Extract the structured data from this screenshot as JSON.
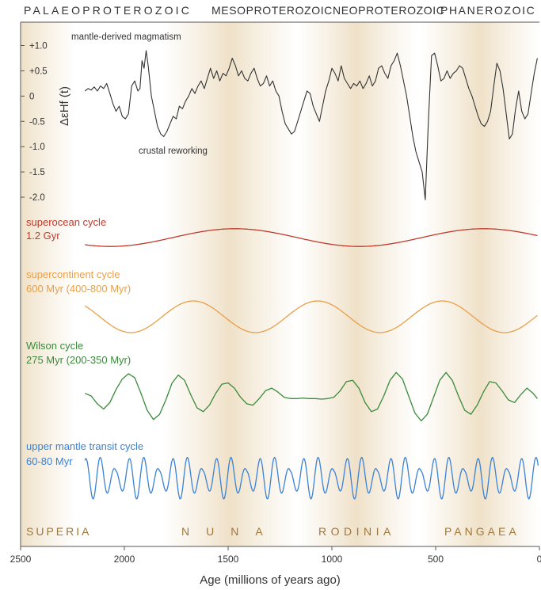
{
  "eras": [
    "PALAEOPROTEROZOIC",
    "MESOPROTEROZOIC",
    "NEOPROTEROZOIC",
    "PHANEROZOIC"
  ],
  "supercontinents": [
    "SUPERIA",
    "NUNA",
    "RODINIA",
    "PANGAEA"
  ],
  "colors": {
    "band": "#efe3cd",
    "hf": "#333333",
    "superocean": "#c0392b",
    "supercontinent": "#e8a04a",
    "wilson": "#3a8a3a",
    "transit": "#3b82d6",
    "axis": "#555555",
    "text": "#333333",
    "supercontinent_text": "#a07838"
  },
  "chart_data": {
    "type": "line",
    "xlabel": "Age (millions of years ago)",
    "xlim": [
      2500,
      0
    ],
    "x_ticks": [
      2500,
      2000,
      1500,
      1000,
      500,
      0
    ],
    "x_tick_labels": [
      "2500",
      "2000",
      "1500",
      "1000",
      "500",
      "0"
    ],
    "hf_panel": {
      "ylabel": "ΔεHf (t)",
      "ylim": [
        -2.2,
        1.2
      ],
      "y_ticks": [
        1.0,
        0.5,
        0,
        -0.5,
        -1.0,
        -1.5,
        -2.0
      ],
      "y_tick_labels": [
        "+1.0",
        "+0.5",
        "0",
        "-0.5",
        "-1.0",
        "-1.5",
        "-2.0"
      ],
      "annotations": [
        "mantle-derived magmatism",
        "crustal reworking"
      ],
      "x": [
        2190,
        2175,
        2160,
        2145,
        2130,
        2115,
        2100,
        2085,
        2070,
        2055,
        2040,
        2025,
        2010,
        1995,
        1980,
        1965,
        1950,
        1935,
        1925,
        1915,
        1905,
        1895,
        1885,
        1870,
        1855,
        1840,
        1825,
        1810,
        1795,
        1780,
        1765,
        1750,
        1735,
        1720,
        1705,
        1690,
        1675,
        1660,
        1645,
        1630,
        1615,
        1600,
        1585,
        1570,
        1555,
        1540,
        1525,
        1510,
        1495,
        1480,
        1465,
        1450,
        1435,
        1420,
        1405,
        1390,
        1375,
        1360,
        1345,
        1330,
        1315,
        1300,
        1285,
        1270,
        1255,
        1240,
        1225,
        1210,
        1195,
        1180,
        1165,
        1150,
        1135,
        1120,
        1105,
        1090,
        1075,
        1060,
        1045,
        1030,
        1015,
        1000,
        985,
        970,
        955,
        940,
        925,
        910,
        895,
        880,
        865,
        850,
        835,
        820,
        805,
        790,
        775,
        760,
        745,
        730,
        715,
        700,
        685,
        670,
        655,
        640,
        625,
        610,
        595,
        580,
        565,
        550,
        535,
        520,
        505,
        490,
        475,
        460,
        445,
        430,
        415,
        400,
        385,
        370,
        355,
        340,
        325,
        310,
        295,
        280,
        265,
        250,
        235,
        220,
        205,
        190,
        175,
        160,
        145,
        130,
        115,
        100,
        85,
        70,
        55,
        40,
        25,
        10
      ],
      "y": [
        0.1,
        0.15,
        0.12,
        0.18,
        0.1,
        0.2,
        0.15,
        0.25,
        0.05,
        -0.15,
        -0.3,
        -0.2,
        -0.4,
        -0.45,
        -0.35,
        0.2,
        0.3,
        0.1,
        0.15,
        0.7,
        0.55,
        0.9,
        0.6,
        0.0,
        -0.3,
        -0.6,
        -0.75,
        -0.8,
        -0.7,
        -0.55,
        -0.4,
        -0.45,
        -0.2,
        -0.25,
        -0.1,
        0.0,
        0.15,
        0.05,
        0.2,
        0.3,
        0.15,
        0.35,
        0.55,
        0.35,
        0.5,
        0.3,
        0.45,
        0.4,
        0.55,
        0.75,
        0.6,
        0.4,
        0.5,
        0.35,
        0.3,
        0.45,
        0.55,
        0.35,
        0.2,
        0.25,
        0.4,
        0.2,
        0.3,
        0.1,
        0.0,
        -0.3,
        -0.55,
        -0.65,
        -0.75,
        -0.7,
        -0.5,
        -0.3,
        -0.1,
        0.1,
        0.05,
        -0.2,
        -0.35,
        -0.5,
        -0.2,
        0.1,
        0.3,
        0.55,
        0.45,
        0.3,
        0.6,
        0.35,
        0.25,
        0.15,
        0.25,
        0.2,
        0.3,
        0.15,
        0.25,
        0.4,
        0.2,
        0.3,
        0.55,
        0.6,
        0.45,
        0.35,
        0.6,
        0.7,
        0.85,
        0.6,
        0.3,
        0.0,
        -0.4,
        -0.8,
        -1.1,
        -1.3,
        -1.5,
        -2.05,
        -0.5,
        0.8,
        0.85,
        0.6,
        0.3,
        0.35,
        0.5,
        0.35,
        0.45,
        0.5,
        0.6,
        0.55,
        0.35,
        0.15,
        0.0,
        -0.2,
        -0.4,
        -0.55,
        -0.6,
        -0.5,
        -0.3,
        0.2,
        0.65,
        0.5,
        0.15,
        -0.35,
        -0.85,
        -0.75,
        -0.25,
        0.1,
        -0.3,
        -0.45,
        -0.35,
        0.05,
        0.45,
        0.75
      ]
    },
    "cycles": [
      {
        "name": "superocean cycle",
        "period_label": "1.2 Gyr",
        "period_myr": 1200,
        "phase": 4.07,
        "amplitude": 0.56,
        "x_start": 2190
      },
      {
        "name": "supercontinent cycle",
        "period_label": "600 Myr (400-800 Myr)",
        "period_myr": 600,
        "phase": 2.39,
        "amplitude": 1.0,
        "x_start": 2190
      },
      {
        "name": "Wilson cycle",
        "period_label": "275 Myr (200-350 Myr)",
        "period_myr": 275,
        "x_start": 2190,
        "x": [
          2190,
          2160,
          2130,
          2100,
          2070,
          2040,
          2010,
          1980,
          1950,
          1920,
          1890,
          1860,
          1830,
          1800,
          1770,
          1740,
          1710,
          1680,
          1650,
          1620,
          1590,
          1560,
          1530,
          1500,
          1470,
          1440,
          1410,
          1380,
          1350,
          1320,
          1290,
          1260,
          1230,
          1200,
          1170,
          1140,
          1110,
          1080,
          1050,
          1020,
          990,
          960,
          930,
          900,
          870,
          840,
          810,
          780,
          750,
          720,
          690,
          660,
          630,
          600,
          570,
          540,
          510,
          480,
          450,
          420,
          390,
          360,
          330,
          300,
          270,
          240,
          210,
          180,
          150,
          120,
          90,
          60,
          30,
          10
        ],
        "y": [
          0.1,
          0.0,
          -0.3,
          -0.5,
          -0.25,
          0.25,
          0.65,
          0.85,
          0.7,
          0.1,
          -0.55,
          -0.9,
          -0.7,
          -0.15,
          0.5,
          0.8,
          0.6,
          0.05,
          -0.45,
          -0.6,
          -0.35,
          0.1,
          0.45,
          0.5,
          0.3,
          -0.05,
          -0.3,
          -0.35,
          -0.1,
          0.2,
          0.3,
          0.15,
          -0.05,
          -0.1,
          -0.1,
          -0.08,
          -0.1,
          -0.1,
          -0.12,
          -0.1,
          -0.05,
          0.2,
          0.55,
          0.6,
          0.3,
          -0.25,
          -0.6,
          -0.5,
          0.0,
          0.6,
          0.9,
          0.65,
          0.0,
          -0.65,
          -0.95,
          -0.7,
          -0.05,
          0.6,
          0.9,
          0.6,
          0.0,
          -0.55,
          -0.7,
          -0.35,
          0.15,
          0.55,
          0.5,
          0.2,
          -0.15,
          -0.25,
          0.05,
          0.3,
          0.1,
          -0.1
        ]
      },
      {
        "name": "upper mantle transit cycle",
        "period_label": "60-80 Myr",
        "x_start": 2190
      }
    ]
  }
}
